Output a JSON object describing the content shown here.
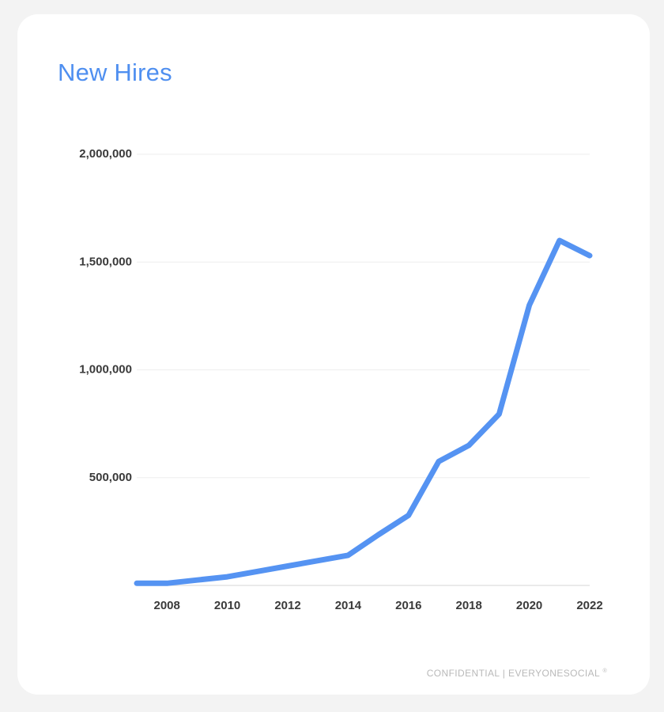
{
  "colors": {
    "accent": "#4f8ff0",
    "line": "#5593f2",
    "grid": "#eeeeee",
    "axis": "#dddddd",
    "tick_text": "#3a3a3a",
    "footer_text": "#b9b9b9"
  },
  "footer": {
    "text": "CONFIDENTIAL | EVERYONESOCIAL",
    "mark": "®"
  },
  "chart_data": {
    "type": "line",
    "title": "New Hires",
    "xlabel": "",
    "ylabel": "",
    "xlim": [
      2007,
      2022
    ],
    "ylim": [
      0,
      2000000
    ],
    "x_ticks": [
      2008,
      2010,
      2012,
      2014,
      2016,
      2018,
      2020,
      2022
    ],
    "y_ticks": [
      500000,
      1000000,
      1500000,
      2000000
    ],
    "y_tick_labels": [
      "500,000",
      "1,000,000",
      "1,500,000",
      "2,000,000"
    ],
    "grid": true,
    "legend": "none",
    "series": [
      {
        "x": [
          2007,
          2008,
          2009,
          2010,
          2011,
          2012,
          2013,
          2014,
          2015,
          2016,
          2017,
          2018,
          2019,
          2020,
          2021,
          2022
        ],
        "values": [
          10000,
          10000,
          25000,
          40000,
          65000,
          90000,
          115000,
          140000,
          235000,
          325000,
          575000,
          650000,
          795000,
          1300000,
          1600000,
          1530000
        ]
      }
    ]
  }
}
